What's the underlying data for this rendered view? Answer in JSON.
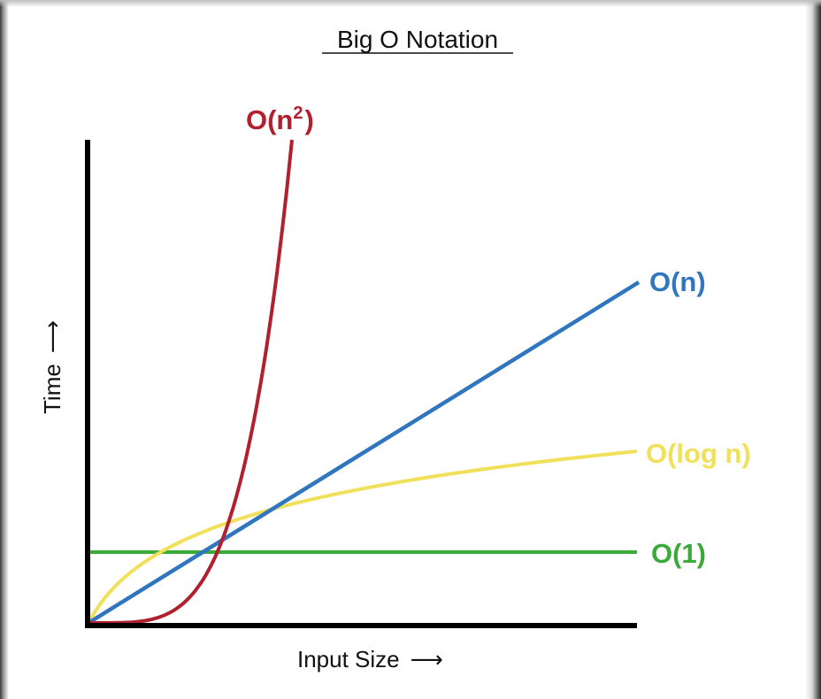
{
  "chart_data": {
    "type": "line",
    "title": "Big O Notation",
    "xlabel": "Input Size",
    "ylabel": "Time",
    "xlabel_arrow": "⟶",
    "ylabel_arrow": "⟶",
    "grid": false,
    "series": [
      {
        "name": "O(n²)",
        "label_base": "O(n",
        "label_sup": "2",
        "label_close": ")",
        "color": "#b0202e"
      },
      {
        "name": "O(n)",
        "color": "#2f76be"
      },
      {
        "name": "O(log n)",
        "color": "#f0e05a"
      },
      {
        "name": "O(1)",
        "color": "#3aaa3a"
      }
    ]
  }
}
